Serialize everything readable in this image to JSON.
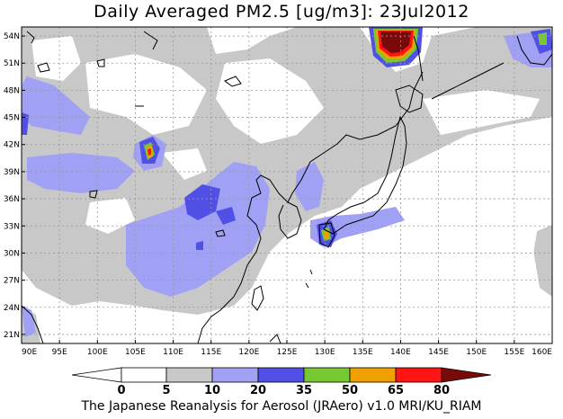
{
  "title": "Daily Averaged PM2.5 [ug/m3]: 23Jul2012",
  "footer": "The Japanese Reanalysis for Aerosol (JRAero) v1.0 MRI/KU_RIAM",
  "map": {
    "lon_range": [
      90,
      160
    ],
    "lat_range": [
      20,
      55
    ],
    "lon_ticks": [
      "90E",
      "95E",
      "100E",
      "105E",
      "110E",
      "115E",
      "120E",
      "125E",
      "130E",
      "135E",
      "140E",
      "145E",
      "150E",
      "155E",
      "160E"
    ],
    "lat_ticks": [
      "21N",
      "24N",
      "27N",
      "30N",
      "33N",
      "36N",
      "39N",
      "42N",
      "45N",
      "48N",
      "51N",
      "54N"
    ],
    "gridlines": true
  },
  "colorbar": {
    "levels": [
      "0",
      "5",
      "10",
      "20",
      "35",
      "50",
      "65",
      "80"
    ],
    "colors": {
      "lt0": "#ffffff",
      "b0_5": "#ffffff",
      "b5_10": "#c8c8c8",
      "b10_20": "#a0a0f5",
      "b20_35": "#5050e6",
      "b35_50": "#78c832",
      "b50_65": "#f0a000",
      "b65_80": "#ff1414",
      "gt80": "#7a0a0a"
    }
  }
}
